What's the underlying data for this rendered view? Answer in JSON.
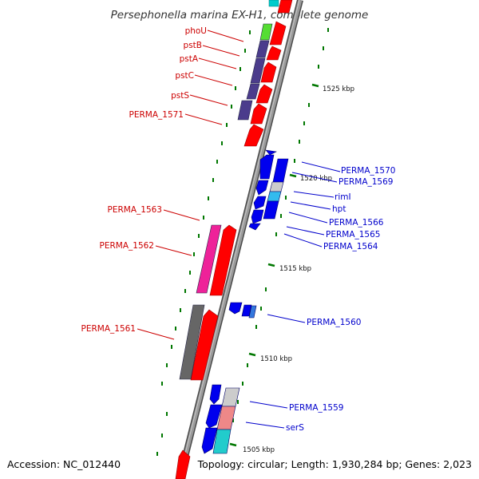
{
  "title": "Persephonella marina EX-H1, complete genome",
  "footer": {
    "accession": "Accession: NC_012440",
    "summary": "Topology: circular; Length: 1,930,284 bp; Genes: 2,023"
  },
  "ticks": [
    "1525 kbp",
    "1520 kbp",
    "1515 kbp",
    "1510 kbp",
    "1505 kbp"
  ],
  "colors": {
    "forward_label": "#cc0000",
    "reverse_label": "#0000cc",
    "gene_red": "#ff0000",
    "gene_blue": "#0000ee",
    "backbone": "#888888",
    "tick": "#007700"
  },
  "forward_labels": [
    "phoU",
    "pstB",
    "pstA",
    "pstC",
    "pstS",
    "PERMA_1571",
    "PERMA_1563",
    "PERMA_1562",
    "PERMA_1561"
  ],
  "reverse_labels": [
    "PERMA_1570",
    "PERMA_1569",
    "rimI",
    "hpt",
    "PERMA_1566",
    "PERMA_1565",
    "PERMA_1564",
    "PERMA_1560",
    "PERMA_1559",
    "serS"
  ]
}
